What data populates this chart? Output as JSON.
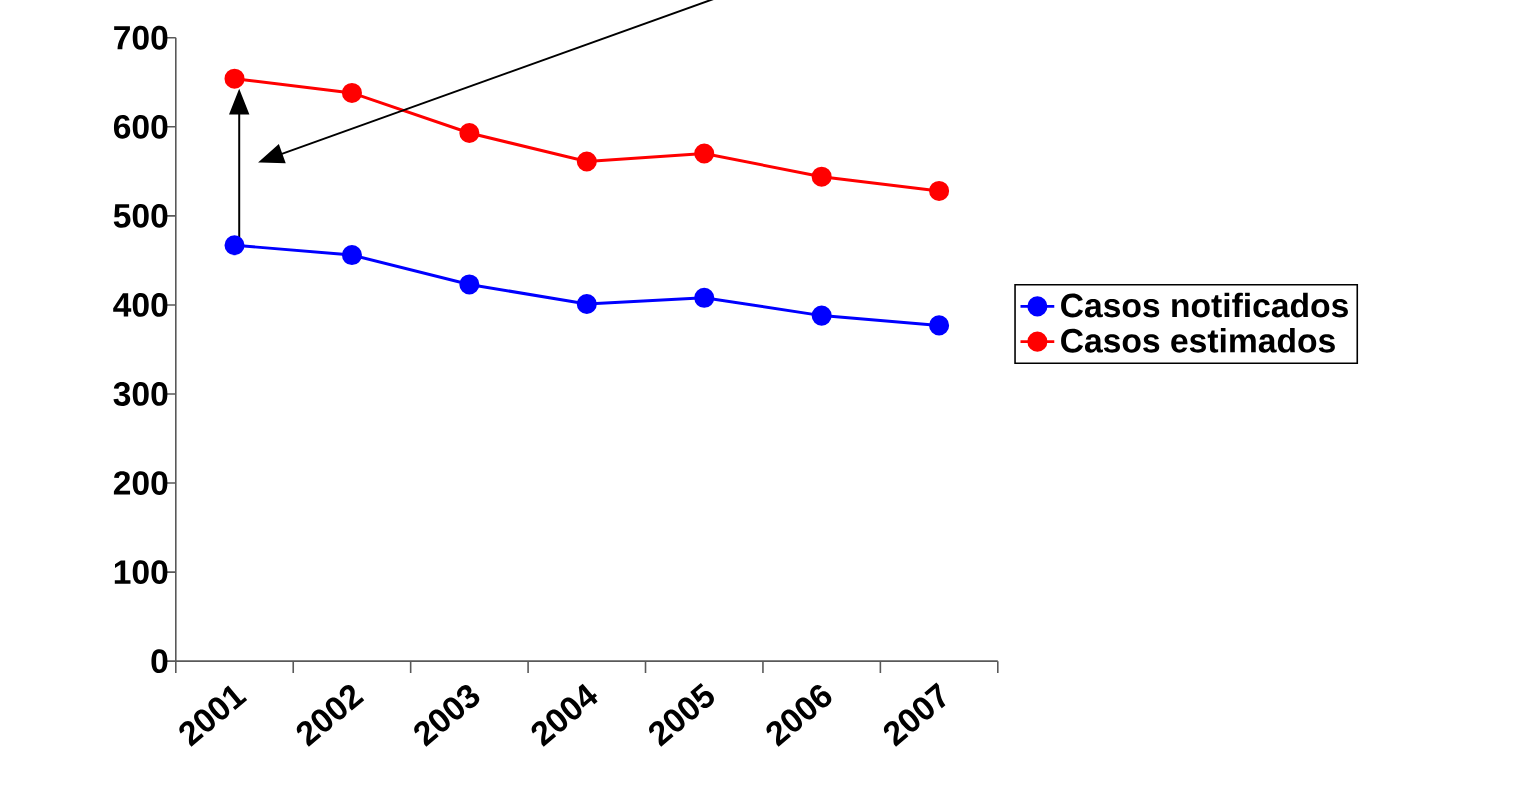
{
  "chart_data": {
    "type": "line",
    "categories": [
      "2001",
      "2002",
      "2003",
      "2004",
      "2005",
      "2006",
      "2007"
    ],
    "series": [
      {
        "name": "Casos notificados",
        "color": "#0000ff",
        "values": [
          467,
          456,
          423,
          401,
          408,
          388,
          377
        ]
      },
      {
        "name": "Casos estimados",
        "color": "#ff0000",
        "values": [
          654,
          638,
          593,
          561,
          570,
          544,
          528
        ]
      }
    ],
    "ylim": [
      0,
      700
    ],
    "yticks": [
      0,
      100,
      200,
      300,
      400,
      500,
      600,
      700
    ],
    "legend": "right",
    "marker": "circle"
  }
}
